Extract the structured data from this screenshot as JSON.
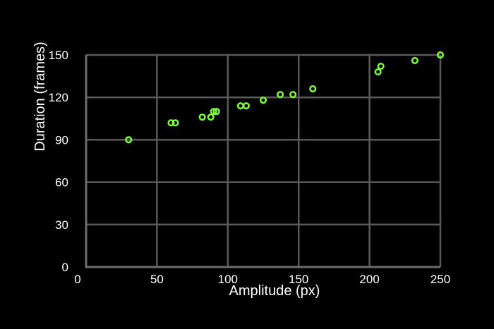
{
  "chart_data": {
    "type": "scatter",
    "title": "",
    "xlabel": "Amplitude (px)",
    "ylabel": "Duration (frames)",
    "xlim": [
      0,
      250
    ],
    "ylim": [
      0,
      150
    ],
    "xticks": [
      0,
      50,
      100,
      150,
      200,
      250
    ],
    "yticks": [
      0,
      30,
      60,
      90,
      120,
      150
    ],
    "xtick_labels": [
      "0",
      "50",
      "100",
      "150",
      "200",
      "250"
    ],
    "ytick_labels": [
      "0",
      "30",
      "60",
      "90",
      "120",
      "150"
    ],
    "grid": true,
    "legend": "none",
    "colors": {
      "background": "#000000",
      "grid": "#5a5a5a",
      "axis": "#6e6e6e",
      "text": "#ffffff",
      "marker": "#7cf542"
    },
    "marker": "hollow-circle",
    "series": [
      {
        "points": [
          [
            30,
            90
          ],
          [
            60,
            102
          ],
          [
            63,
            102
          ],
          [
            82,
            106
          ],
          [
            88,
            106
          ],
          [
            90,
            110
          ],
          [
            92,
            110
          ],
          [
            109,
            114
          ],
          [
            113,
            114
          ],
          [
            125,
            118
          ],
          [
            137,
            122
          ],
          [
            146,
            122
          ],
          [
            160,
            126
          ],
          [
            206,
            138
          ],
          [
            208,
            142
          ],
          [
            232,
            146
          ],
          [
            250,
            150
          ]
        ]
      }
    ]
  }
}
